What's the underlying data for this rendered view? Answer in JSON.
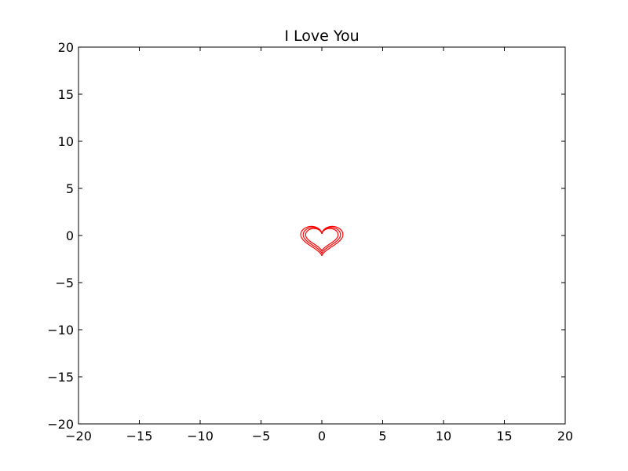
{
  "chart_data": {
    "type": "line",
    "title": "I Love You",
    "xlabel": "",
    "ylabel": "",
    "xlim": [
      -20,
      20
    ],
    "ylim": [
      -20,
      20
    ],
    "x_ticks": [
      -20,
      -15,
      -10,
      -5,
      0,
      5,
      10,
      15,
      20
    ],
    "y_ticks": [
      -20,
      -15,
      -10,
      -5,
      0,
      5,
      10,
      15,
      20
    ],
    "x_tick_labels": [
      "−20",
      "−15",
      "−10",
      "−5",
      "0",
      "5",
      "10",
      "15",
      "20"
    ],
    "y_tick_labels": [
      "−20",
      "−15",
      "−10",
      "−5",
      "0",
      "5",
      "10",
      "15",
      "20"
    ],
    "grid": false,
    "legend": "none",
    "series": [
      {
        "color": "#ff0000",
        "curve": "heart",
        "scale": 1.0
      },
      {
        "color": "#ff0000",
        "curve": "heart",
        "scale": 1.15
      },
      {
        "color": "#ff0000",
        "curve": "heart",
        "scale": 1.3
      }
    ]
  }
}
